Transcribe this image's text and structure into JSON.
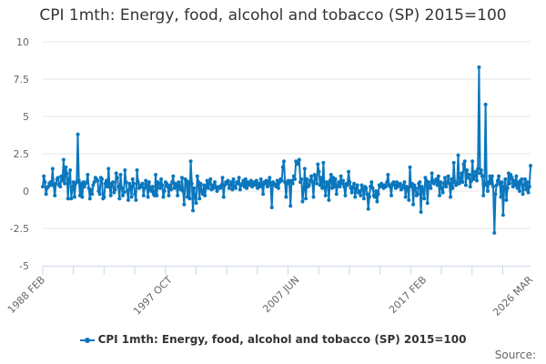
{
  "chart_data": {
    "type": "line",
    "title": "CPI 1mth: Energy, food, alcohol and tobacco (SP) 2015=100",
    "xlabel": "",
    "ylabel": "",
    "x_start": "1988 FEB",
    "x_end": "2026 MAR",
    "frequency": "monthly",
    "x_tick_labels": [
      "1988 FEB",
      "1997 OCT",
      "2007 JUN",
      "2017 FEB",
      "2026 MAR"
    ],
    "y_ticks": [
      10,
      7.5,
      5,
      2.5,
      0,
      -2.5,
      -5
    ],
    "y_tick_labels": [
      "10",
      "7.5",
      "5",
      "2.5",
      "0",
      "-2.5",
      "-5"
    ],
    "ylim": [
      -5,
      10
    ],
    "grid": true,
    "legend_position": "bottom",
    "series": [
      {
        "name": "CPI 1mth: Energy, food, alcohol and tobacco (SP) 2015=100",
        "color": "#0b77bd",
        "values": [
          0.3,
          1.0,
          0.6,
          -0.2,
          0.2,
          0.3,
          0.5,
          0.6,
          0.4,
          1.5,
          0.4,
          -0.3,
          0.5,
          0.8,
          0.9,
          0.4,
          0.3,
          1.0,
          0.7,
          2.1,
          0.5,
          1.6,
          1.2,
          -0.5,
          0.8,
          1.4,
          -0.5,
          0.2,
          0.6,
          -0.4,
          0.5,
          0.6,
          3.8,
          0.7,
          -0.3,
          0.5,
          -0.4,
          0.6,
          0.3,
          0.5,
          0.6,
          1.1,
          0.2,
          -0.5,
          0.1,
          -0.2,
          0.4,
          0.6,
          0.9,
          0.8,
          0.7,
          0.0,
          -0.2,
          0.9,
          0.8,
          -0.5,
          -0.4,
          0.5,
          0.7,
          0.3,
          1.5,
          0.3,
          -0.3,
          0.5,
          0.6,
          -0.1,
          0.1,
          1.2,
          0.9,
          0.3,
          -0.5,
          1.1,
          0.2,
          -0.3,
          -0.1,
          1.4,
          0.6,
          0.0,
          -0.6,
          0.5,
          0.3,
          -0.4,
          0.8,
          0.5,
          -0.2,
          -0.6,
          1.4,
          0.6,
          0.2,
          0.4,
          0.3,
          0.5,
          -0.3,
          0.2,
          0.7,
          0.4,
          -0.4,
          0.6,
          0.1,
          0.0,
          0.3,
          -0.2,
          -0.3,
          1.1,
          -0.3,
          0.6,
          0.5,
          0.2,
          0.8,
          0.4,
          -0.4,
          0.0,
          0.6,
          0.5,
          0.3,
          -0.3,
          0.4,
          0.1,
          0.6,
          1.0,
          0.2,
          0.5,
          0.4,
          -0.3,
          0.6,
          0.3,
          0.1,
          0.9,
          0.0,
          -0.9,
          0.8,
          0.7,
          -0.4,
          0.6,
          -0.5,
          2.0,
          0.5,
          -1.3,
          0.2,
          -0.4,
          -0.8,
          1.0,
          0.6,
          -0.5,
          0.5,
          0.0,
          -0.2,
          0.4,
          -0.3,
          0.3,
          0.7,
          0.2,
          0.5,
          0.8,
          0.1,
          0.4,
          0.2,
          0.6,
          0.3,
          0.0,
          0.2,
          0.3,
          0.2,
          0.4,
          0.9,
          -0.4,
          0.4,
          0.6,
          0.5,
          0.7,
          0.2,
          0.4,
          0.6,
          0.1,
          0.8,
          0.3,
          0.2,
          0.6,
          0.5,
          0.9,
          0.1,
          0.4,
          0.5,
          0.7,
          0.3,
          0.8,
          0.2,
          0.6,
          0.4,
          0.5,
          0.7,
          0.3,
          0.5,
          0.6,
          0.4,
          0.7,
          0.2,
          0.5,
          0.3,
          0.8,
          0.4,
          -0.2,
          0.6,
          0.5,
          0.7,
          0.3,
          0.6,
          0.9,
          0.4,
          -1.1,
          0.6,
          0.5,
          0.4,
          0.3,
          0.7,
          0.2,
          0.6,
          0.8,
          0.7,
          1.6,
          2.0,
          0.6,
          -0.4,
          0.5,
          0.7,
          0.6,
          -1.0,
          0.7,
          0.5,
          1.0,
          0.8,
          2.0,
          1.9,
          1.8,
          2.1,
          0.6,
          0.8,
          -0.7,
          0.1,
          1.5,
          -0.5,
          0.8,
          0.3,
          0.4,
          0.7,
          1.0,
          0.6,
          -0.4,
          1.1,
          0.9,
          0.5,
          1.8,
          1.3,
          0.4,
          0.9,
          0.2,
          1.9,
          0.3,
          -0.3,
          0.6,
          0.5,
          -0.6,
          0.7,
          1.1,
          0.2,
          0.9,
          0.3,
          0.8,
          -0.2,
          0.4,
          0.6,
          0.3,
          1.0,
          0.5,
          0.7,
          0.3,
          -0.3,
          0.5,
          0.4,
          1.3,
          0.6,
          0.2,
          -0.1,
          0.3,
          0.5,
          -0.4,
          0.2,
          0.4,
          -0.1,
          0.0,
          -0.3,
          0.4,
          0.1,
          -0.5,
          0.3,
          0.2,
          -0.2,
          -1.2,
          -0.4,
          0.3,
          0.6,
          0.2,
          -0.3,
          -0.4,
          0.0,
          -0.7,
          -0.2,
          0.4,
          0.3,
          0.5,
          0.4,
          0.2,
          0.4,
          0.3,
          0.6,
          1.1,
          0.4,
          0.3,
          -0.3,
          0.5,
          0.6,
          0.4,
          0.2,
          0.6,
          0.3,
          0.4,
          0.5,
          0.1,
          0.2,
          0.4,
          0.6,
          -0.4,
          0.3,
          0.2,
          -0.6,
          1.6,
          0.3,
          0.5,
          -0.9,
          0.4,
          0.2,
          -0.3,
          -0.2,
          0.5,
          0.6,
          -1.4,
          0.3,
          0.1,
          -0.5,
          0.9,
          0.7,
          -0.8,
          0.6,
          0.3,
          0.2,
          1.2,
          0.6,
          0.5,
          0.7,
          0.8,
          0.4,
          1.0,
          -0.3,
          0.6,
          0.2,
          -0.1,
          0.5,
          0.9,
          0.3,
          0.6,
          1.0,
          0.5,
          -0.4,
          0.8,
          0.2,
          1.9,
          0.6,
          0.4,
          0.5,
          2.4,
          0.5,
          0.7,
          1.2,
          0.6,
          1.8,
          2.0,
          0.4,
          1.4,
          0.9,
          1.1,
          0.3,
          0.7,
          2.0,
          0.8,
          1.0,
          1.3,
          0.7,
          1.5,
          8.3,
          1.2,
          1.4,
          1.0,
          -0.3,
          0.5,
          5.8,
          0.4,
          0.0,
          0.6,
          1.0,
          0.5,
          1.0,
          0.3,
          -2.8,
          -0.2,
          0.4,
          0.7,
          1.0,
          0.5,
          -0.4,
          0.6,
          -1.6,
          0.3,
          0.8,
          -0.6,
          0.2,
          1.2,
          0.5,
          1.1,
          0.9,
          0.3,
          0.7,
          0.4,
          1.0,
          0.2,
          0.6,
          0.0,
          0.7,
          0.8,
          -0.2,
          0.4,
          0.8,
          0.1,
          0.6,
          -0.1,
          0.3,
          1.7
        ]
      }
    ]
  },
  "source_label": "Source:"
}
